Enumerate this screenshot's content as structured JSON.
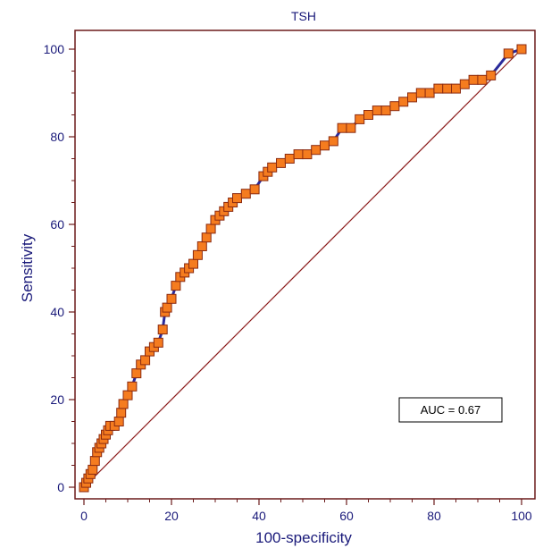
{
  "chart_data": {
    "type": "line",
    "title": "TSH",
    "xlabel": "100-specificity",
    "ylabel": "Sensitivity",
    "xlim": [
      0,
      100
    ],
    "ylim": [
      0,
      100
    ],
    "x_ticks": [
      "0",
      "20",
      "40",
      "60",
      "80",
      "100"
    ],
    "y_ticks": [
      "0",
      "20",
      "40",
      "60",
      "80",
      "100"
    ],
    "grid": false,
    "annotation": "AUC = 0.67",
    "reference_line": [
      [
        0,
        0
      ],
      [
        100,
        100
      ]
    ],
    "series": [
      {
        "x": [
          0,
          0.5,
          1,
          1.5,
          2,
          2.5,
          3,
          3.5,
          4,
          4.5,
          5,
          5.5,
          6,
          7,
          8,
          8.5,
          9,
          10,
          11,
          12,
          13,
          14,
          15,
          16,
          17,
          18,
          18.5,
          19,
          20,
          21,
          22,
          23,
          24,
          25,
          26,
          27,
          28,
          29,
          30,
          31,
          32,
          33,
          34,
          35,
          37,
          39,
          41,
          42,
          43,
          45,
          47,
          49,
          51,
          53,
          55,
          57,
          59,
          61,
          63,
          65,
          67,
          69,
          71,
          73,
          75,
          77,
          79,
          81,
          83,
          85,
          87,
          89,
          91,
          93,
          97,
          100
        ],
        "y": [
          0,
          1,
          2,
          3,
          4,
          6,
          8,
          9,
          10,
          11,
          12,
          13,
          14,
          14,
          15,
          17,
          19,
          21,
          23,
          26,
          28,
          29,
          31,
          32,
          33,
          36,
          40,
          41,
          43,
          46,
          48,
          49,
          50,
          51,
          53,
          55,
          57,
          59,
          61,
          62,
          63,
          64,
          65,
          66,
          67,
          68,
          71,
          72,
          73,
          74,
          75,
          76,
          76,
          77,
          78,
          79,
          82,
          82,
          84,
          85,
          86,
          86,
          87,
          88,
          89,
          90,
          90,
          91,
          91,
          91,
          92,
          93,
          93,
          94,
          99,
          100
        ]
      }
    ]
  }
}
